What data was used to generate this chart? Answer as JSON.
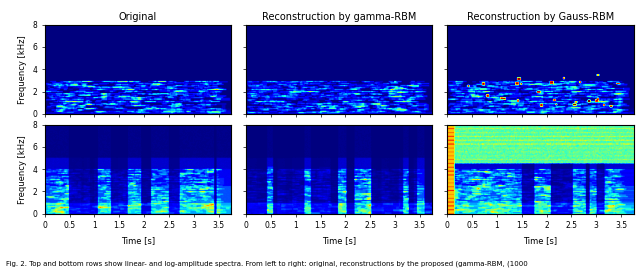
{
  "titles": [
    "Original",
    "Reconstruction by gamma-RBM",
    "Reconstruction by Gauss-RBM"
  ],
  "ylabel": "Frequency [kHz]",
  "xlabel": "Time [s]",
  "xlim": [
    0,
    3.75
  ],
  "ylim": [
    0,
    8
  ],
  "xticks": [
    0,
    0.5,
    1,
    1.5,
    2,
    2.5,
    3,
    3.5
  ],
  "yticks": [
    0,
    2,
    4,
    6,
    8
  ],
  "title_fontsize": 7,
  "label_fontsize": 6,
  "tick_fontsize": 5.5,
  "caption": "Fig. 2. Top and bottom rows show linear- and log-amplitude spectra. From left to right: original, reconstructions by the proposed (gamma-RBM, (1000",
  "caption_fontsize": 5,
  "figsize": [
    6.4,
    2.74
  ],
  "dpi": 100
}
